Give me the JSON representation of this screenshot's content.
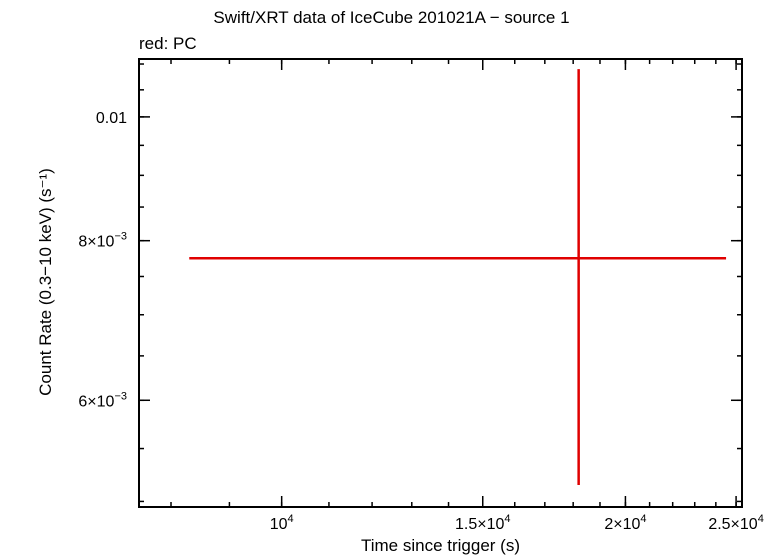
{
  "chart_data": {
    "type": "scatter",
    "title": "Swift/XRT data of IceCube 201021A − source 1",
    "subtitle": "red: PC",
    "xlabel": "Time since trigger (s)",
    "ylabel": "Count Rate (0.3−10 keV) (s⁻¹)",
    "xscale": "log",
    "yscale": "log",
    "xlim": [
      7500,
      25300
    ],
    "ylim": [
      0.00495,
      0.0111
    ],
    "x_ticks": [
      {
        "value": 10000,
        "base": "10",
        "exp": "4"
      },
      {
        "value": 15000,
        "base": "1.5×10",
        "exp": "4"
      },
      {
        "value": 20000,
        "base": "2×10",
        "exp": "4"
      },
      {
        "value": 25000,
        "base": "2.5×10",
        "exp": "4"
      }
    ],
    "y_ticks": [
      {
        "value": 0.006,
        "base": "6×10",
        "exp": "−3"
      },
      {
        "value": 0.008,
        "base": "8×10",
        "exp": "−3"
      },
      {
        "value": 0.01,
        "base": "0.01",
        "exp": ""
      }
    ],
    "series": [
      {
        "color": "#e00000",
        "points": [
          {
            "x": 18200,
            "y": 0.00775,
            "x_min": 8300,
            "x_max": 24500,
            "y_min": 0.00515,
            "y_max": 0.0109
          }
        ]
      }
    ]
  }
}
